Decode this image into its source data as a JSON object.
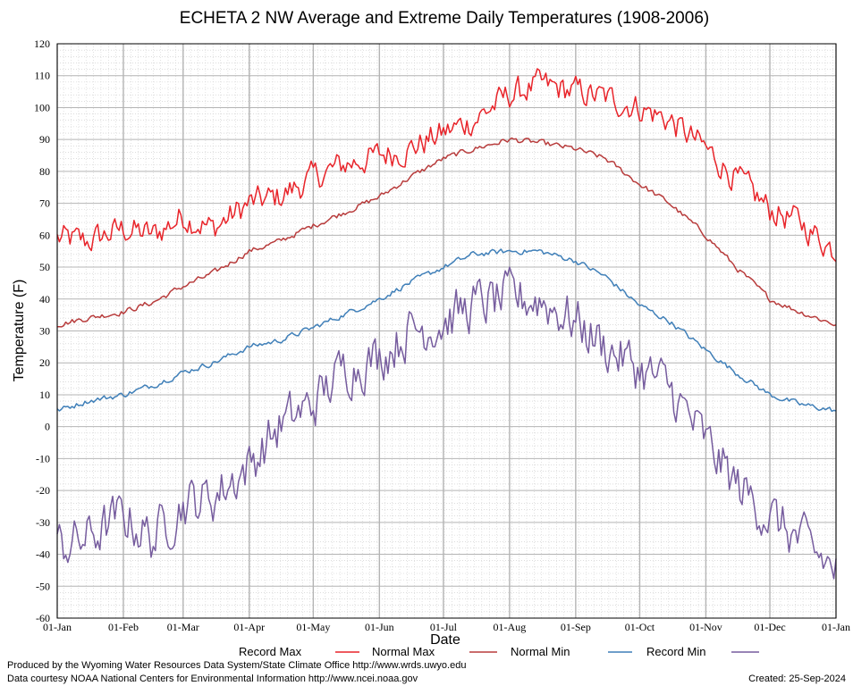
{
  "chart_data": {
    "type": "line",
    "title": "ECHETA 2 NW Average and Extreme Daily Temperatures (1908-2006)",
    "xlabel": "Date",
    "ylabel": "Temperature (F)",
    "ylim": [
      -60,
      120
    ],
    "y_ticks": [
      120,
      110,
      100,
      90,
      80,
      70,
      60,
      50,
      40,
      30,
      20,
      10,
      0,
      -10,
      -20,
      -30,
      -40,
      -50,
      -60
    ],
    "x_ticks": [
      "01-Jan",
      "01-Feb",
      "01-Mar",
      "01-Apr",
      "01-May",
      "01-Jun",
      "01-Jul",
      "01-Aug",
      "01-Sep",
      "01-Oct",
      "01-Nov",
      "01-Dec",
      "01-Jan"
    ],
    "grid": true,
    "legend_position": "bottom",
    "x_anchor_days": [
      1,
      15,
      32,
      46,
      60,
      74,
      91,
      105,
      121,
      135,
      152,
      166,
      182,
      196,
      213,
      227,
      244,
      258,
      274,
      288,
      305,
      319,
      335,
      349,
      366
    ],
    "series": [
      {
        "name": "Record Max",
        "color": "#e8242a",
        "values": [
          59,
          58,
          62,
          60,
          66,
          62,
          70,
          72,
          78,
          82,
          85,
          87,
          92,
          96,
          104,
          107,
          105,
          103,
          100,
          96,
          87,
          78,
          68,
          64,
          55
        ],
        "noise": 4
      },
      {
        "name": "Normal Max",
        "color": "#b83c3c",
        "values": [
          32,
          34,
          36,
          39,
          44,
          48,
          55,
          58,
          63,
          67,
          72,
          78,
          84,
          87,
          90,
          89,
          87,
          84,
          76,
          70,
          60,
          50,
          40,
          36,
          32
        ],
        "noise": 0.8
      },
      {
        "name": "Normal Min",
        "color": "#3f7fb8",
        "values": [
          5,
          8,
          10,
          13,
          17,
          20,
          25,
          27,
          31,
          35,
          40,
          45,
          50,
          54,
          55,
          55,
          52,
          47,
          38,
          33,
          24,
          17,
          10,
          7,
          5
        ],
        "noise": 0.8
      },
      {
        "name": "Record Min",
        "color": "#765c9e",
        "values": [
          -38,
          -35,
          -28,
          -35,
          -24,
          -22,
          -12,
          0,
          7,
          18,
          22,
          30,
          33,
          38,
          40,
          40,
          33,
          25,
          18,
          12,
          -5,
          -18,
          -28,
          -36,
          -45
        ],
        "noise": 7
      }
    ]
  },
  "credits": {
    "produced_by": "Produced by the Wyoming Water Resources Data System/State Climate Office http://www.wrds.uwyo.edu",
    "data_courtesy": "Data courtesy NOAA National Centers for Environmental Information http://www.ncei.noaa.gov",
    "created": "Created:  25-Sep-2024"
  }
}
